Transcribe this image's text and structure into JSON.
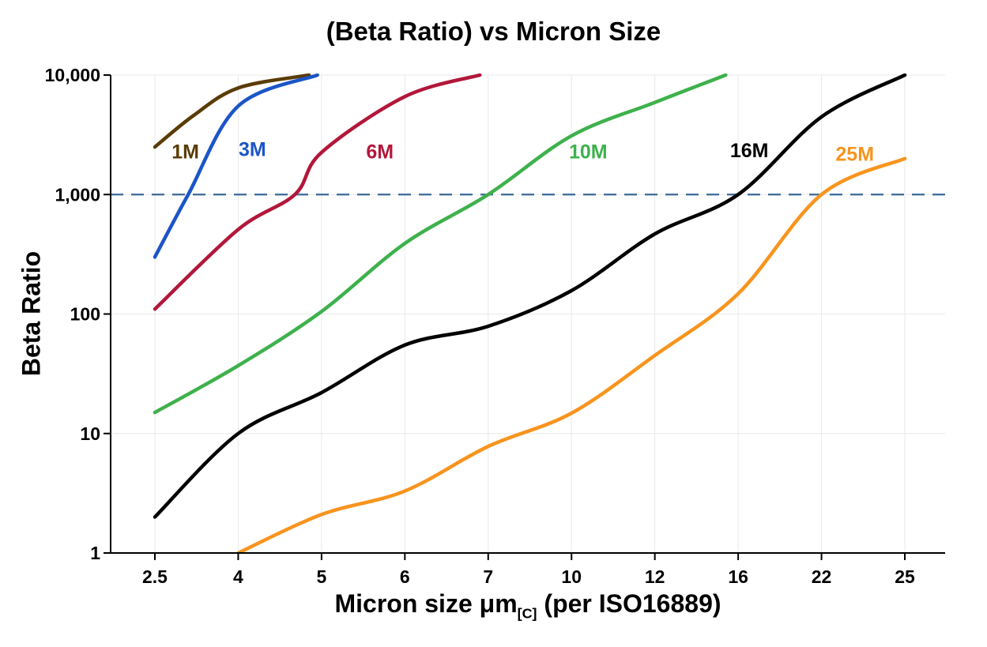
{
  "chart_data": {
    "type": "line",
    "title": "(Beta Ratio) vs Micron Size",
    "ylabel": "Beta Ratio",
    "xlabel_main": "Micron size μm",
    "xlabel_sub": "[C]",
    "xlabel_suffix": " (per ISO16889)",
    "x_scale": "categorical",
    "y_scale": "log",
    "ylim": [
      1,
      10000
    ],
    "x_ticks": [
      2.5,
      4,
      5,
      6,
      7,
      10,
      12,
      16,
      22,
      25
    ],
    "x_tick_labels": [
      "2.5",
      "4",
      "5",
      "6",
      "7",
      "10",
      "12",
      "16",
      "22",
      "25"
    ],
    "y_ticks": [
      1,
      10,
      100,
      1000,
      10000
    ],
    "y_tick_labels": [
      "1",
      "10",
      "100",
      "1,000",
      "10,000"
    ],
    "grid": true,
    "grid_color": "#e9e9e9",
    "axis_color": "#000000",
    "reference_line": {
      "beta": 1000,
      "style": "dashed",
      "color": "#3b6898"
    },
    "series": [
      {
        "name": "1M",
        "color": "#5a3c06",
        "label": {
          "micron": 3.05,
          "beta": 2300
        },
        "points": [
          {
            "micron": 2.5,
            "beta": 2500
          },
          {
            "micron": 3.2,
            "beta": 4600
          },
          {
            "micron": 4.0,
            "beta": 7800
          },
          {
            "micron": 4.85,
            "beta": 10000
          }
        ]
      },
      {
        "name": "3M",
        "color": "#1b55c8",
        "label": {
          "micron": 4.17,
          "beta": 2400
        },
        "points": [
          {
            "micron": 2.5,
            "beta": 300
          },
          {
            "micron": 3.1,
            "beta": 1000
          },
          {
            "micron": 4.0,
            "beta": 5500
          },
          {
            "micron": 4.95,
            "beta": 10000
          }
        ]
      },
      {
        "name": "6M",
        "color": "#b2173a",
        "label": {
          "micron": 5.7,
          "beta": 2300
        },
        "points": [
          {
            "micron": 2.5,
            "beta": 110
          },
          {
            "micron": 4.0,
            "beta": 510
          },
          {
            "micron": 4.68,
            "beta": 1000
          },
          {
            "micron": 5.0,
            "beta": 2250
          },
          {
            "micron": 6.0,
            "beta": 6600
          },
          {
            "micron": 6.9,
            "beta": 10000
          }
        ]
      },
      {
        "name": "10M",
        "color": "#3eb14c",
        "label": {
          "micron": 10.4,
          "beta": 2300
        },
        "points": [
          {
            "micron": 2.5,
            "beta": 15
          },
          {
            "micron": 4.0,
            "beta": 37
          },
          {
            "micron": 5.0,
            "beta": 105
          },
          {
            "micron": 6.0,
            "beta": 390
          },
          {
            "micron": 7.0,
            "beta": 1000
          },
          {
            "micron": 10.0,
            "beta": 3100
          },
          {
            "micron": 12.0,
            "beta": 5900
          },
          {
            "micron": 15.4,
            "beta": 10000
          }
        ]
      },
      {
        "name": "16M",
        "color": "#000000",
        "label": {
          "micron": 16.8,
          "beta": 2350
        },
        "points": [
          {
            "micron": 2.5,
            "beta": 2
          },
          {
            "micron": 4.0,
            "beta": 10
          },
          {
            "micron": 5.0,
            "beta": 22
          },
          {
            "micron": 6.0,
            "beta": 55
          },
          {
            "micron": 7.0,
            "beta": 79
          },
          {
            "micron": 10.0,
            "beta": 157
          },
          {
            "micron": 12.0,
            "beta": 468
          },
          {
            "micron": 16.0,
            "beta": 1000
          },
          {
            "micron": 22.0,
            "beta": 4470
          },
          {
            "micron": 25.0,
            "beta": 10000
          }
        ]
      },
      {
        "name": "25M",
        "color": "#f8941e",
        "label": {
          "micron": 23.2,
          "beta": 2200
        },
        "points": [
          {
            "micron": 4.0,
            "beta": 1
          },
          {
            "micron": 5.0,
            "beta": 2.1
          },
          {
            "micron": 6.0,
            "beta": 3.3
          },
          {
            "micron": 7.0,
            "beta": 7.8
          },
          {
            "micron": 10.0,
            "beta": 14.8
          },
          {
            "micron": 12.0,
            "beta": 45
          },
          {
            "micron": 16.0,
            "beta": 148
          },
          {
            "micron": 22.0,
            "beta": 1000
          },
          {
            "micron": 25.0,
            "beta": 2000
          }
        ]
      }
    ]
  }
}
